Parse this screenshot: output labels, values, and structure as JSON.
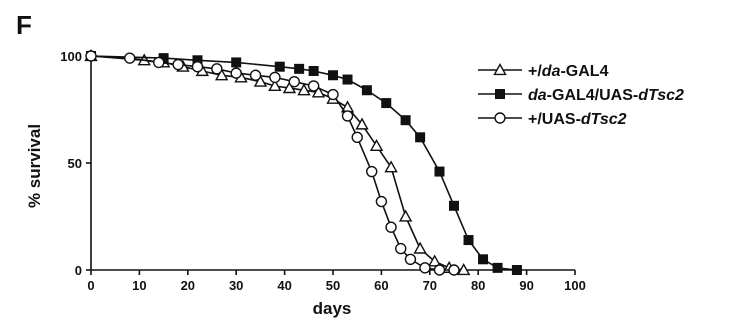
{
  "panel_label": "F",
  "chart_data": {
    "type": "line",
    "xlabel": "days",
    "ylabel": "% survival",
    "xlim": [
      0,
      100
    ],
    "ylim": [
      0,
      100
    ],
    "xticks": [
      0,
      10,
      20,
      30,
      40,
      50,
      60,
      70,
      80,
      90,
      100
    ],
    "yticks": [
      0,
      50,
      100
    ],
    "grid": false,
    "legend_position": "top-right",
    "series": [
      {
        "name": "+/da-GAL4",
        "legend_parts": [
          {
            "text": "+/",
            "italic": false
          },
          {
            "text": "da",
            "italic": true
          },
          {
            "text": "-GAL4",
            "italic": false
          }
        ],
        "marker": "triangle-open",
        "x": [
          0,
          11,
          15,
          19,
          23,
          27,
          31,
          35,
          38,
          41,
          44,
          47,
          50,
          53,
          56,
          59,
          62,
          65,
          68,
          71,
          74,
          77
        ],
        "y": [
          100,
          98,
          97,
          95,
          93,
          91,
          90,
          88,
          86,
          85,
          84,
          83,
          80,
          76,
          68,
          58,
          48,
          25,
          10,
          4,
          1,
          0
        ]
      },
      {
        "name": "da-GAL4/UAS-dTsc2",
        "legend_parts": [
          {
            "text": "da",
            "italic": true
          },
          {
            "text": "-GAL4/UAS-",
            "italic": false
          },
          {
            "text": "dTsc2",
            "italic": true
          }
        ],
        "marker": "square-filled",
        "x": [
          0,
          15,
          22,
          30,
          39,
          43,
          46,
          50,
          53,
          57,
          61,
          65,
          68,
          72,
          75,
          78,
          81,
          84,
          88
        ],
        "y": [
          100,
          99,
          98,
          97,
          95,
          94,
          93,
          91,
          89,
          84,
          78,
          70,
          62,
          46,
          30,
          14,
          5,
          1,
          0
        ]
      },
      {
        "name": "+/UAS-dTsc2",
        "legend_parts": [
          {
            "text": "+/UAS-",
            "italic": false
          },
          {
            "text": "dTsc2",
            "italic": true
          }
        ],
        "marker": "circle-open",
        "x": [
          0,
          8,
          14,
          18,
          22,
          26,
          30,
          34,
          38,
          42,
          46,
          50,
          53,
          55,
          58,
          60,
          62,
          64,
          66,
          69,
          72,
          75
        ],
        "y": [
          100,
          99,
          97,
          96,
          95,
          94,
          92,
          91,
          90,
          88,
          86,
          82,
          72,
          62,
          46,
          32,
          20,
          10,
          5,
          1,
          0,
          0
        ]
      }
    ]
  }
}
